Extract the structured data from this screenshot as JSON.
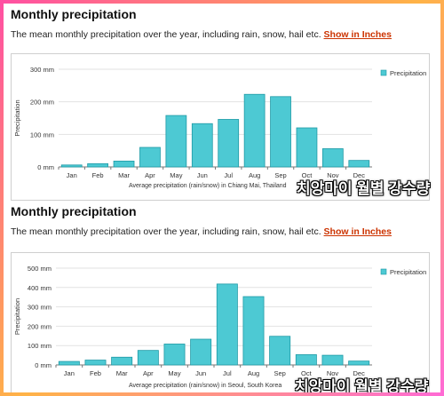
{
  "sections": [
    {
      "heading": "Monthly precipitation",
      "description": "The mean monthly precipitation over the year, including rain, snow, hail etc.",
      "link_label": "Show in Inches",
      "caption": "Average precipitation (rain/snow) in Chiang Mai, Thailand"
    },
    {
      "heading": "Monthly precipitation",
      "description": "The mean monthly precipitation over the year, including rain, snow, hail etc.",
      "link_label": "Show in Inches",
      "caption": "Average precipitation (rain/snow) in Seoul, South Korea"
    }
  ],
  "overlay_text": "치앙마이 월별 강수량",
  "colors": {
    "bar_fill": "#4dc9d3",
    "bar_stroke": "#1f9aa6",
    "link": "#cc3300"
  },
  "chart_data": [
    {
      "type": "bar",
      "categories": [
        "Jan",
        "Feb",
        "Mar",
        "Apr",
        "May",
        "Jun",
        "Jul",
        "Aug",
        "Sep",
        "Oct",
        "Nov",
        "Dec"
      ],
      "series": [
        {
          "name": "Precipitation",
          "values": [
            6,
            10,
            18,
            60,
            158,
            133,
            146,
            223,
            216,
            120,
            56,
            20
          ]
        }
      ],
      "ylabel": "Precipitation",
      "ylim": [
        0,
        300
      ],
      "yticks": [
        0,
        100,
        200,
        300
      ],
      "ytick_labels": [
        "0 mm",
        "100 mm",
        "200 mm",
        "300 mm"
      ],
      "grid": true,
      "legend": "top-right"
    },
    {
      "type": "bar",
      "categories": [
        "Jan",
        "Feb",
        "Mar",
        "Apr",
        "May",
        "Jun",
        "Jul",
        "Aug",
        "Sep",
        "Oct",
        "Nov",
        "Dec"
      ],
      "series": [
        {
          "name": "Precipitation",
          "values": [
            18,
            25,
            40,
            75,
            108,
            133,
            418,
            353,
            148,
            53,
            50,
            20
          ]
        }
      ],
      "ylabel": "Precipitation",
      "ylim": [
        0,
        500
      ],
      "yticks": [
        0,
        100,
        200,
        300,
        400,
        500
      ],
      "ytick_labels": [
        "0 mm",
        "100 mm",
        "200 mm",
        "300 mm",
        "400 mm",
        "500 mm"
      ],
      "grid": true,
      "legend": "top-right"
    }
  ]
}
